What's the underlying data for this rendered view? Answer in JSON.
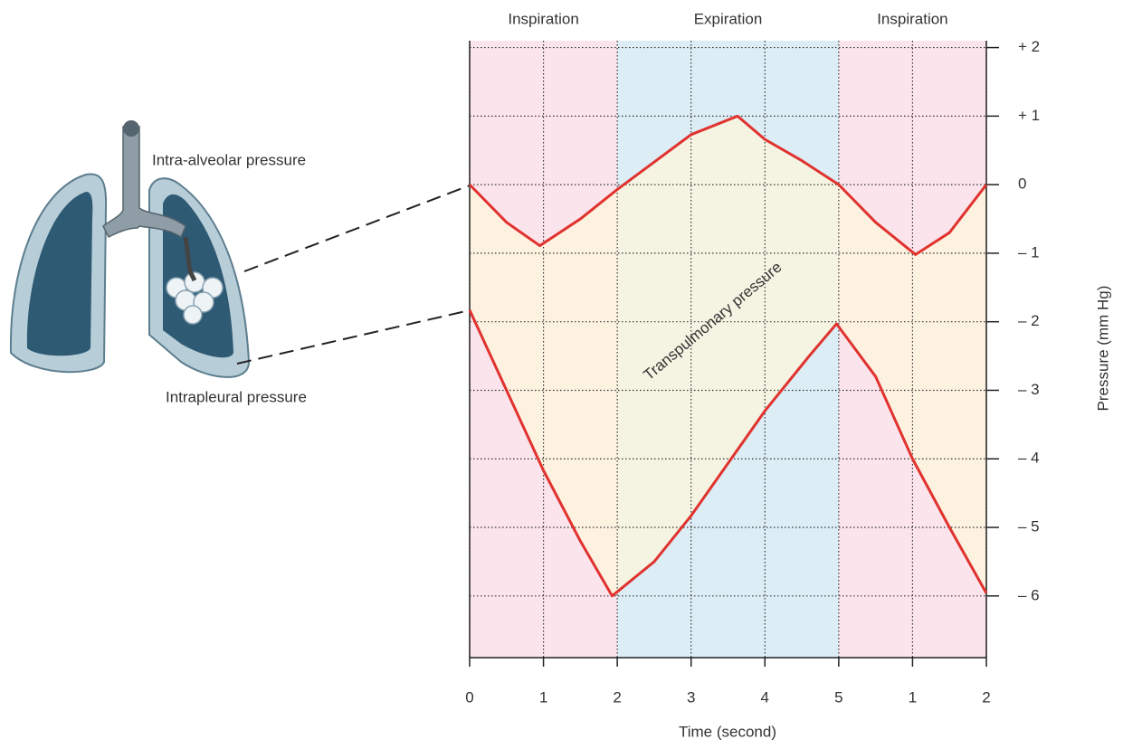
{
  "chart_data": {
    "type": "line",
    "x_label": "Time (second)",
    "y_label": "Pressure (mm Hg)",
    "annotation": "Transpulmonary pressure",
    "xlim": [
      0,
      7
    ],
    "xticks": [
      0,
      1,
      2,
      3,
      4,
      5,
      {
        "value": 6,
        "label": "1"
      },
      {
        "value": 7,
        "label": "2"
      }
    ],
    "ylim": [
      -6.9,
      2.1
    ],
    "yticks": [
      {
        "value": 2,
        "label": "+ 2"
      },
      {
        "value": 1,
        "label": "+ 1"
      },
      0,
      {
        "value": -1,
        "label": "– 1"
      },
      {
        "value": -2,
        "label": "– 2"
      },
      {
        "value": -3,
        "label": "– 3"
      },
      {
        "value": -4,
        "label": "– 4"
      },
      {
        "value": -5,
        "label": "– 5"
      },
      {
        "value": -6,
        "label": "– 6"
      }
    ],
    "grid": true,
    "phases": [
      {
        "label": "Inspiration",
        "start": 0,
        "end": 2,
        "color": "#fbe4ec"
      },
      {
        "label": "Expiration",
        "start": 2,
        "end": 5,
        "color": "#dcedf6"
      },
      {
        "label": "Inspiration",
        "start": 5,
        "end": 7,
        "color": "#fbe4ec"
      }
    ],
    "fill_between_color": "#fdf5dc",
    "series": [
      {
        "name": "Intra-alveolar pressure",
        "color": "#e0322e",
        "x": [
          0,
          0.5,
          0.95,
          1.5,
          2,
          3,
          3.63,
          4,
          4.5,
          5,
          5.5,
          6.04,
          6.5,
          7
        ],
        "values": [
          0,
          -0.55,
          -0.89,
          -0.5,
          -0.07,
          0.73,
          1.0,
          0.66,
          0.35,
          0,
          -0.55,
          -1.02,
          -0.7,
          0
        ]
      },
      {
        "name": "Intrapleural pressure",
        "color": "#e0322e",
        "x": [
          0,
          0.5,
          1,
          1.5,
          1.93,
          2.5,
          3,
          4,
          4.6,
          4.97,
          5.5,
          6,
          6.5,
          7
        ],
        "values": [
          -1.83,
          -3.0,
          -4.17,
          -5.2,
          -6.0,
          -5.5,
          -4.83,
          -3.3,
          -2.5,
          -2.03,
          -2.8,
          -4.0,
          -5.0,
          -5.96
        ]
      }
    ]
  }
}
